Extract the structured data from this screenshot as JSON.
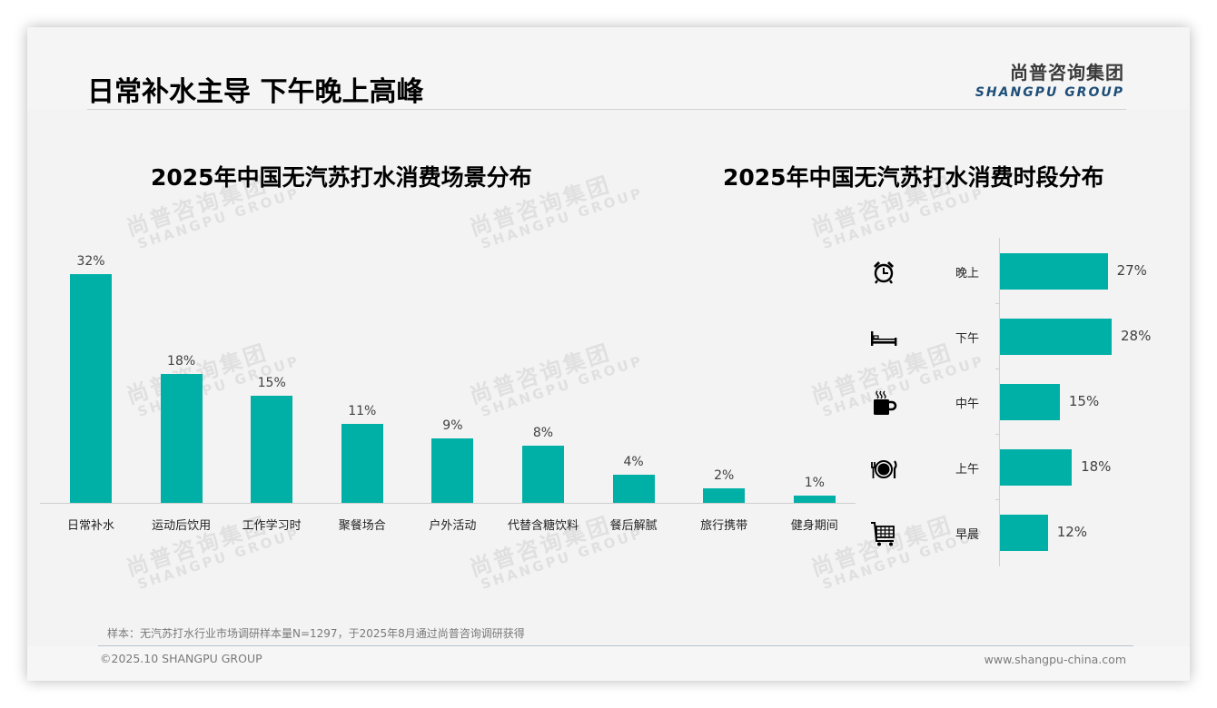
{
  "page": {
    "title": "日常补水主导 下午晚上高峰",
    "logo_cn": "尚普咨询集团",
    "logo_en": "SHANGPU GROUP",
    "watermark_cn": "尚普咨询集团",
    "watermark_en": "SHANGPU GROUP",
    "note": "样本：无汽苏打水行业市场调研样本量N=1297，于2025年8月通过尚普咨询调研获得",
    "copyright": "©2025.10 SHANGPU GROUP",
    "website": "www.shangpu-china.com",
    "colors": {
      "bar": "#00b0a6",
      "logo_en": "#1f4e79",
      "background": "#f3f3f3"
    }
  },
  "chart_data": [
    {
      "type": "bar",
      "title": "2025年中国无汽苏打水消费场景分布",
      "categories": [
        "日常补水",
        "运动后饮用",
        "工作学习时",
        "聚餐场合",
        "户外活动",
        "代替含糖饮料",
        "餐后解腻",
        "旅行携带",
        "健身期间"
      ],
      "values": [
        32,
        18,
        15,
        11,
        9,
        8,
        4,
        2,
        1
      ],
      "labels": [
        "32%",
        "18%",
        "15%",
        "11%",
        "9%",
        "8%",
        "4%",
        "2%",
        "1%"
      ],
      "xlabel": "",
      "ylabel": "",
      "unit": "%",
      "grid": false,
      "legend": "none",
      "orientation": "vertical"
    },
    {
      "type": "bar",
      "title": "2025年中国无汽苏打水消费时段分布",
      "categories": [
        "晚上",
        "下午",
        "中午",
        "上午",
        "早晨"
      ],
      "values": [
        27,
        28,
        15,
        18,
        12
      ],
      "labels": [
        "27%",
        "28%",
        "15%",
        "18%",
        "12%"
      ],
      "icons": [
        "alarm-clock-icon",
        "bed-icon",
        "coffee-cup-icon",
        "plate-cutlery-icon",
        "shopping-cart-icon"
      ],
      "xlabel": "",
      "ylabel": "",
      "unit": "%",
      "grid": false,
      "legend": "none",
      "orientation": "horizontal"
    }
  ]
}
